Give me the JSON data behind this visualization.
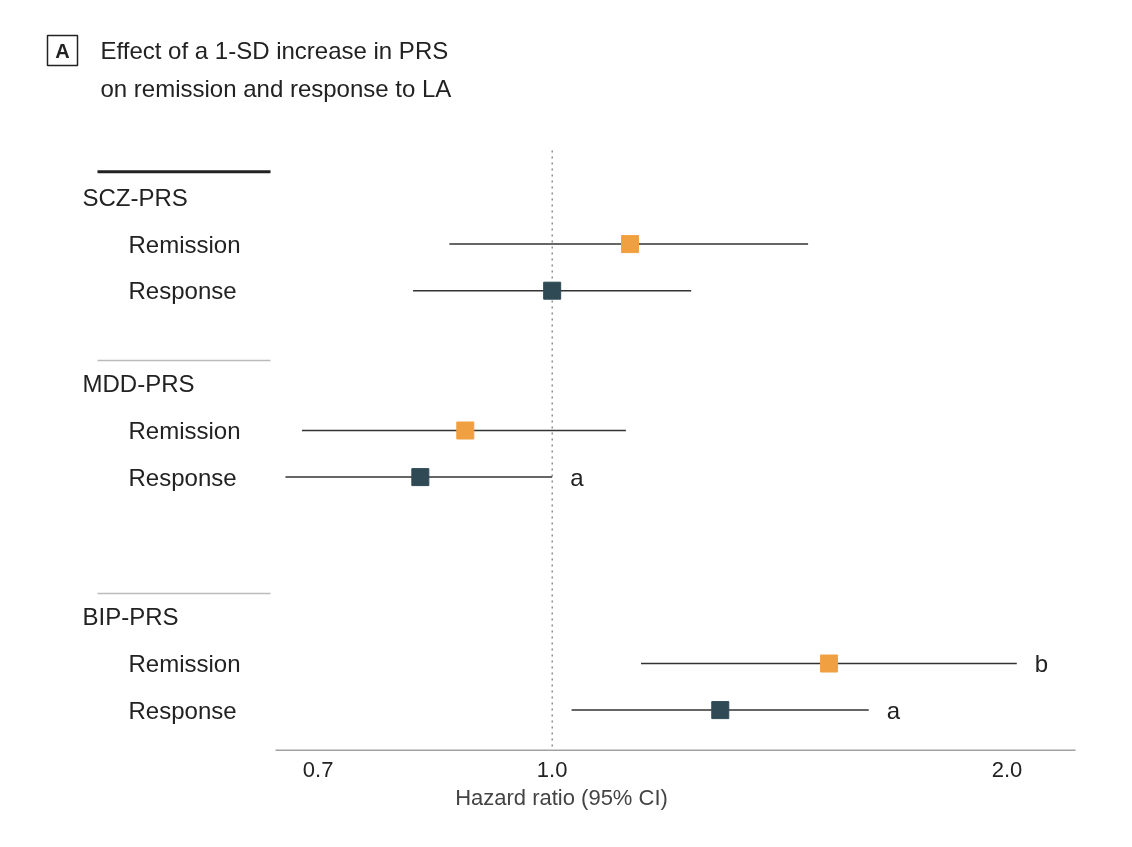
{
  "chart_data": {
    "type": "scatter",
    "orientation": "horizontal",
    "title": "Effect of a 1-SD increase in PRS\non remission and response to LA",
    "categories": [
      null,
      "Remission",
      "Response",
      null,
      null,
      "Remission",
      "Response",
      null,
      null,
      null,
      "Remission",
      "Response"
    ],
    "values": [
      null,
      1.126,
      1.0,
      null,
      null,
      0.876,
      0.818,
      null,
      null,
      null,
      1.525,
      1.292
    ],
    "errors": [
      null,
      [
        0.855,
        1.477
      ],
      [
        0.809,
        1.236
      ],
      null,
      null,
      [
        0.683,
        1.119
      ],
      [
        0.666,
        1.0
      ],
      null,
      null,
      null,
      [
        1.145,
        2.03
      ],
      [
        1.03,
        1.62
      ]
    ],
    "colors": [
      null,
      "#f0a040",
      "#2f4a55",
      null,
      null,
      "#f0a040",
      "#2f4a55",
      null,
      null,
      null,
      "#f0a040",
      "#2f4a55"
    ],
    "marker": "square",
    "log": "x",
    "xlabel": "Hazard ratio (95% CI)",
    "xlim": [
      0.656,
      2.22
    ],
    "xticks": [
      0.7,
      {
        "value": 1,
        "label": "1.0"
      },
      {
        "value": 2,
        "label": "2.0"
      }
    ],
    "ref_lines": [
      {
        "axis": "x",
        "value": 1.0,
        "line_style": "dotted",
        "color": "#555555"
      }
    ],
    "annotations": [
      "A",
      "SCZ-PRS",
      "MDD-PRS",
      "BIP-PRS",
      {
        "text": "a",
        "x": 1.0
      },
      {
        "text": "b",
        "x": 2.03
      },
      {
        "text": "a",
        "x": 1.62
      }
    ],
    "grid": false
  }
}
